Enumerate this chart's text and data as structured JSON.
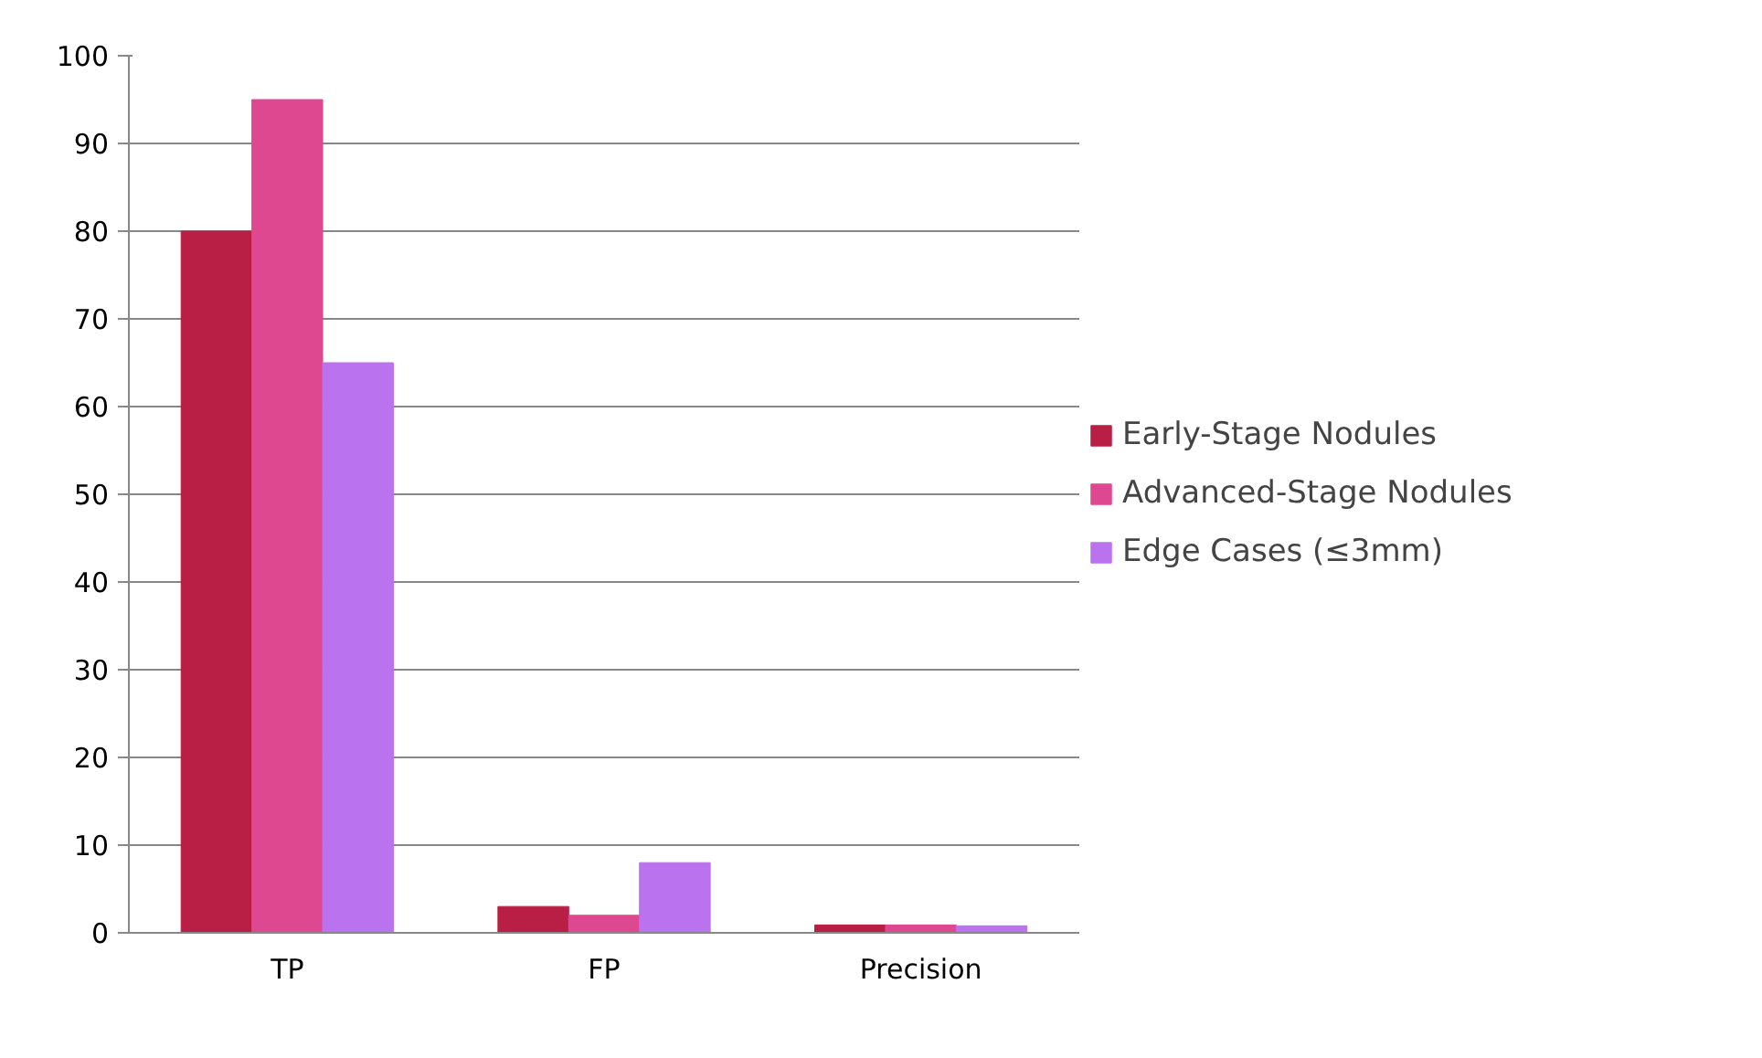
{
  "chart_data": {
    "type": "bar",
    "categories": [
      "TP",
      "FP",
      "Precision"
    ],
    "series": [
      {
        "name": "Early-Stage Nodules",
        "color": "#b91f44",
        "values": [
          80,
          3,
          0.9
        ]
      },
      {
        "name": "Advanced-Stage Nodules",
        "color": "#de4890",
        "values": [
          95,
          2,
          0.9
        ]
      },
      {
        "name": "Edge Cases (≤3mm)",
        "color": "#bb72ee",
        "values": [
          65,
          8,
          0.8
        ]
      }
    ],
    "ylim": [
      0,
      100
    ],
    "yticks": [
      0,
      10,
      20,
      30,
      40,
      50,
      60,
      70,
      80,
      90,
      100
    ],
    "grid": "y",
    "legend": "right"
  }
}
